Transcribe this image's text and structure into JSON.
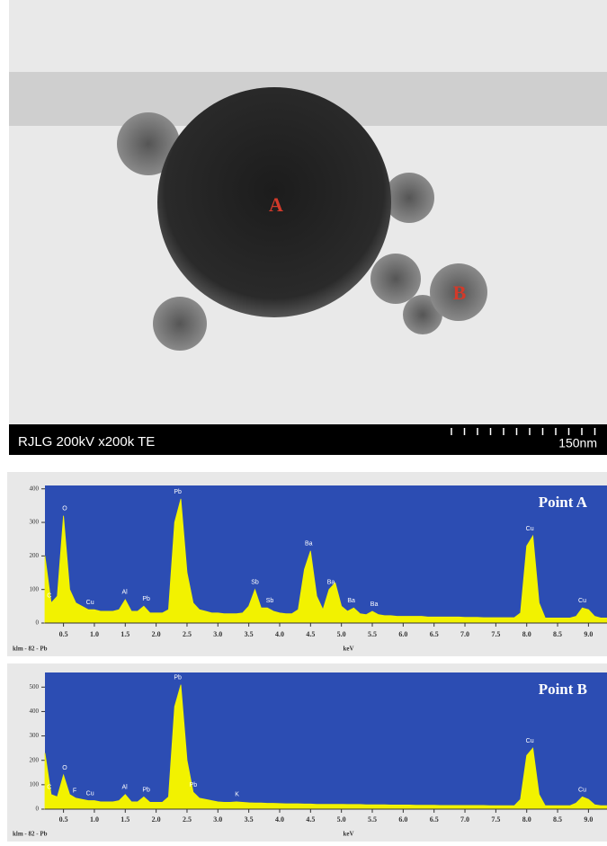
{
  "image": {
    "labels": [
      "A",
      "B"
    ],
    "caption": "RJLG 200kV x200k TE",
    "scale_bar": "150nm"
  },
  "chart_data": [
    {
      "type": "area",
      "title": "Point A",
      "x_label": "keV",
      "footer": "klm - 82 - Pb",
      "color": "#f2f200",
      "background": "#2c4db3",
      "xlim": [
        0.2,
        9.3
      ],
      "ylim": [
        0,
        410
      ],
      "xticks": [
        0.5,
        {
          "value": 1,
          "label": "1.0"
        },
        1.5,
        {
          "value": 2,
          "label": "2.0"
        },
        2.5,
        {
          "value": 3,
          "label": "3.0"
        },
        3.5,
        {
          "value": 4,
          "label": "4.0"
        },
        4.5,
        {
          "value": 5,
          "label": "5.0"
        },
        5.5,
        {
          "value": 6,
          "label": "6.0"
        },
        6.5,
        {
          "value": 7,
          "label": "7.0"
        },
        7.5,
        {
          "value": 8,
          "label": "8.0"
        },
        8.5,
        {
          "value": 9,
          "label": "9.0"
        }
      ],
      "yticks": [
        0,
        100,
        200,
        300,
        400
      ],
      "x": [
        0.2,
        0.3,
        0.4,
        0.5,
        0.6,
        0.7,
        0.8,
        0.9,
        1.0,
        1.1,
        1.2,
        1.3,
        1.4,
        1.5,
        1.6,
        1.7,
        1.8,
        1.9,
        2.0,
        2.1,
        2.2,
        2.3,
        2.4,
        2.5,
        2.6,
        2.7,
        2.8,
        2.9,
        3.0,
        3.1,
        3.2,
        3.3,
        3.4,
        3.5,
        3.6,
        3.7,
        3.8,
        3.9,
        4.0,
        4.1,
        4.2,
        4.3,
        4.4,
        4.5,
        4.6,
        4.7,
        4.8,
        4.9,
        5.0,
        5.1,
        5.2,
        5.3,
        5.4,
        5.5,
        5.6,
        5.7,
        5.8,
        5.9,
        6.0,
        6.1,
        6.2,
        6.3,
        6.4,
        6.5,
        6.6,
        6.7,
        6.8,
        6.9,
        7.0,
        7.1,
        7.2,
        7.3,
        7.4,
        7.5,
        7.6,
        7.7,
        7.8,
        7.9,
        8.0,
        8.1,
        8.2,
        8.3,
        8.4,
        8.5,
        8.6,
        8.7,
        8.8,
        8.9,
        9.0,
        9.1,
        9.2,
        9.3
      ],
      "values": [
        200,
        60,
        80,
        320,
        100,
        60,
        50,
        40,
        40,
        35,
        35,
        35,
        40,
        70,
        35,
        35,
        50,
        30,
        30,
        30,
        40,
        300,
        370,
        150,
        60,
        40,
        35,
        30,
        30,
        28,
        28,
        28,
        30,
        50,
        100,
        45,
        45,
        35,
        30,
        28,
        28,
        40,
        160,
        215,
        80,
        40,
        100,
        120,
        50,
        35,
        45,
        28,
        25,
        35,
        25,
        22,
        22,
        20,
        20,
        20,
        20,
        20,
        18,
        18,
        18,
        18,
        18,
        18,
        17,
        17,
        17,
        16,
        16,
        16,
        16,
        16,
        16,
        30,
        230,
        260,
        60,
        15,
        15,
        15,
        15,
        15,
        20,
        45,
        40,
        20,
        15,
        15
      ],
      "peak_labels": [
        {
          "label": "C",
          "x": 0.27
        },
        {
          "label": "O",
          "x": 0.52
        },
        {
          "label": "Cu",
          "x": 0.93
        },
        {
          "label": "Al",
          "x": 1.49
        },
        {
          "label": "Pb",
          "x": 1.84
        },
        {
          "label": "Pb",
          "x": 2.35
        },
        {
          "label": "Sb",
          "x": 3.6
        },
        {
          "label": "Sb",
          "x": 3.84
        },
        {
          "label": "Ba",
          "x": 4.47
        },
        {
          "label": "Ba",
          "x": 4.83
        },
        {
          "label": "Ba",
          "x": 5.16
        },
        {
          "label": "Ba",
          "x": 5.53
        },
        {
          "label": "Cu",
          "x": 8.05
        },
        {
          "label": "Cu",
          "x": 8.9
        }
      ]
    },
    {
      "type": "area",
      "title": "Point B",
      "x_label": "keV",
      "footer": "klm - 82 - Pb",
      "color": "#f2f200",
      "background": "#2c4db3",
      "xlim": [
        0.2,
        9.3
      ],
      "ylim": [
        0,
        560
      ],
      "xticks": [
        0.5,
        {
          "value": 1,
          "label": "1.0"
        },
        1.5,
        {
          "value": 2,
          "label": "2.0"
        },
        2.5,
        {
          "value": 3,
          "label": "3.0"
        },
        3.5,
        {
          "value": 4,
          "label": "4.0"
        },
        4.5,
        {
          "value": 5,
          "label": "5.0"
        },
        5.5,
        {
          "value": 6,
          "label": "6.0"
        },
        6.5,
        {
          "value": 7,
          "label": "7.0"
        },
        7.5,
        {
          "value": 8,
          "label": "8.0"
        },
        8.5,
        {
          "value": 9,
          "label": "9.0"
        }
      ],
      "yticks": [
        0,
        100,
        200,
        300,
        400,
        500
      ],
      "x": [
        0.2,
        0.3,
        0.4,
        0.5,
        0.6,
        0.7,
        0.8,
        0.9,
        1.0,
        1.1,
        1.2,
        1.3,
        1.4,
        1.5,
        1.6,
        1.7,
        1.8,
        1.9,
        2.0,
        2.1,
        2.2,
        2.3,
        2.4,
        2.5,
        2.6,
        2.7,
        2.8,
        2.9,
        3.0,
        3.1,
        3.2,
        3.3,
        3.4,
        3.5,
        3.6,
        3.7,
        3.8,
        3.9,
        4.0,
        4.1,
        4.2,
        4.3,
        4.4,
        4.5,
        4.6,
        4.7,
        4.8,
        4.9,
        5.0,
        5.1,
        5.2,
        5.3,
        5.4,
        5.5,
        5.6,
        5.7,
        5.8,
        5.9,
        6.0,
        6.1,
        6.2,
        6.3,
        6.4,
        6.5,
        6.6,
        6.7,
        6.8,
        6.9,
        7.0,
        7.1,
        7.2,
        7.3,
        7.4,
        7.5,
        7.6,
        7.7,
        7.8,
        7.9,
        8.0,
        8.1,
        8.2,
        8.3,
        8.4,
        8.5,
        8.6,
        8.7,
        8.8,
        8.9,
        9.0,
        9.1,
        9.2,
        9.3
      ],
      "values": [
        230,
        60,
        50,
        140,
        60,
        45,
        40,
        35,
        35,
        30,
        30,
        30,
        35,
        60,
        30,
        30,
        50,
        28,
        28,
        28,
        50,
        420,
        510,
        200,
        70,
        45,
        40,
        35,
        30,
        28,
        28,
        30,
        28,
        26,
        25,
        25,
        24,
        24,
        23,
        22,
        22,
        22,
        21,
        21,
        20,
        20,
        20,
        20,
        20,
        19,
        19,
        19,
        18,
        18,
        18,
        18,
        17,
        17,
        17,
        17,
        16,
        16,
        16,
        16,
        15,
        15,
        15,
        15,
        15,
        15,
        15,
        15,
        14,
        14,
        14,
        14,
        14,
        40,
        220,
        250,
        60,
        14,
        14,
        14,
        14,
        14,
        25,
        50,
        40,
        18,
        14,
        14
      ],
      "peak_labels": [
        {
          "label": "C",
          "x": 0.27
        },
        {
          "label": "O",
          "x": 0.52
        },
        {
          "label": "F",
          "x": 0.68
        },
        {
          "label": "Cu",
          "x": 0.93
        },
        {
          "label": "Al",
          "x": 1.49
        },
        {
          "label": "Pb",
          "x": 1.84
        },
        {
          "label": "Pb",
          "x": 2.35
        },
        {
          "label": "Pb",
          "x": 2.6
        },
        {
          "label": "K",
          "x": 3.31
        },
        {
          "label": "Cu",
          "x": 8.05
        },
        {
          "label": "Cu",
          "x": 8.9
        }
      ]
    }
  ]
}
